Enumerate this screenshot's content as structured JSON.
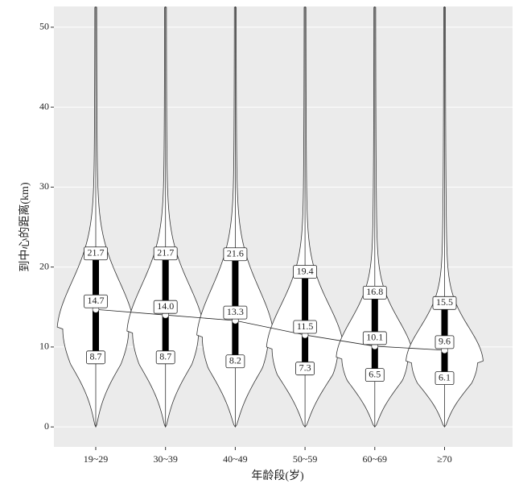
{
  "chart_data": {
    "type": "violin",
    "x_label": "年龄段(岁)",
    "y_label": "到中心的距离(km)",
    "categories": [
      "19~29",
      "30~39",
      "40~49",
      "50~59",
      "60~69",
      "≥70"
    ],
    "series": [
      {
        "name": "q1",
        "values": [
          8.7,
          8.7,
          8.2,
          7.3,
          6.5,
          6.1
        ]
      },
      {
        "name": "median",
        "values": [
          14.7,
          14.0,
          13.3,
          11.5,
          10.1,
          9.6
        ],
        "value_labels": [
          "14.7",
          "14.0",
          "13.3",
          "11.5",
          "10.1",
          "9.6"
        ]
      },
      {
        "name": "q3",
        "values": [
          21.7,
          21.7,
          21.6,
          19.4,
          16.8,
          15.5
        ]
      }
    ],
    "ylim": [
      -2.5,
      52.6
    ],
    "yticks": [
      0,
      10,
      20,
      30,
      40,
      50
    ],
    "grid": true,
    "panel_color": "#ebebeb"
  }
}
